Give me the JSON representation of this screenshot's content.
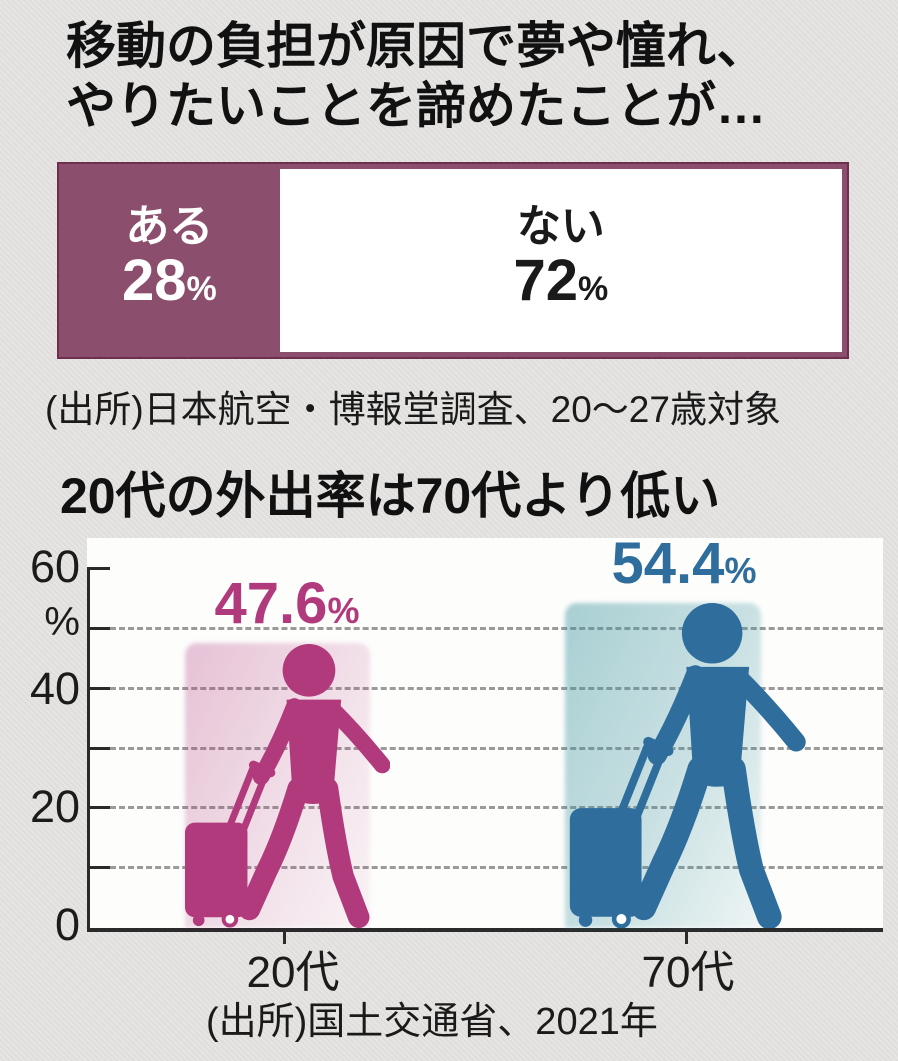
{
  "survey": {
    "title_lines": [
      "移動の負担が原因で夢や憧れ、",
      "やりたいことを諦めたことが…"
    ],
    "segments": [
      {
        "label": "ある",
        "value": "28",
        "unit": "%"
      },
      {
        "label": "ない",
        "value": "72",
        "unit": "%"
      }
    ],
    "source": "(出所)日本航空・博報堂調査、20〜27歳対象"
  },
  "outing": {
    "title": "20代の外出率は70代より低い",
    "y_axis": [
      "60",
      "%",
      "40",
      "20",
      "0"
    ],
    "groups": [
      {
        "label": "20代",
        "value": "47.6",
        "unit": "%",
        "color": "#b13a7c"
      },
      {
        "label": "70代",
        "value": "54.4",
        "unit": "%",
        "color": "#2e6d9c"
      }
    ],
    "source": "(出所)国土交通省、2021年"
  },
  "colors": {
    "survey_bar_fill": "#8c4e6d",
    "survey_bar_border": "#6e2f4f",
    "magenta": "#b13a7c",
    "blue": "#2e6d9c",
    "background": "#e3e2e0"
  },
  "chart_data": [
    {
      "type": "bar",
      "subtype": "horizontal-stacked-100pct",
      "title": "移動の負担が原因で夢や憧れ、やりたいことを諦めたことが…",
      "categories": [
        "ある",
        "ない"
      ],
      "values": [
        28,
        72
      ],
      "unit": "%",
      "colors": [
        "#8c4e6d",
        "#ffffff"
      ],
      "source": "(出所)日本航空・博報堂調査、20〜27歳対象"
    },
    {
      "type": "bar",
      "subtype": "pictogram-traveler-with-suitcase",
      "title": "20代の外出率は70代より低い",
      "categories": [
        "20代",
        "70代"
      ],
      "values": [
        47.6,
        54.4
      ],
      "unit": "%",
      "ylabel": "%",
      "ylim": [
        0,
        60
      ],
      "yticks": [
        0,
        10,
        20,
        30,
        40,
        50,
        60
      ],
      "ytick_labels": [
        "0",
        "20",
        "40",
        "60"
      ],
      "grid": "dashed-horizontal",
      "colors": [
        "#b13a7c",
        "#2e6d9c"
      ],
      "source": "(出所)国土交通省、2021年"
    }
  ]
}
